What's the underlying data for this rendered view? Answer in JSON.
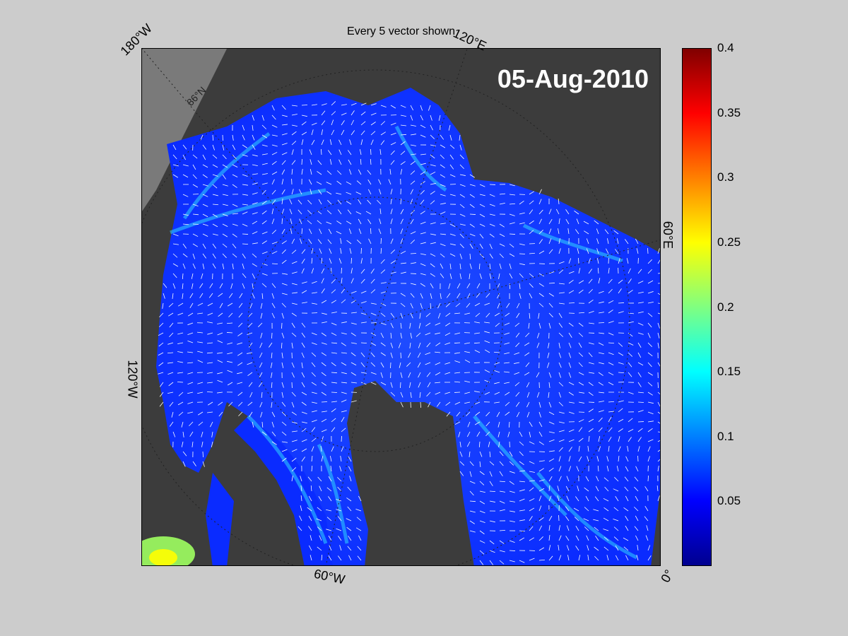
{
  "title": "Every 5 vector shown",
  "date": "05-Aug-2010",
  "geo_labels": {
    "lon_180w": "180°W",
    "lon_120e": "120°E",
    "lon_60e": "60°E",
    "lon_120w": "120°W",
    "lon_60w": "60°W",
    "lon_0": "0°",
    "lat_86n": "86°N"
  },
  "colorbar": {
    "colormap": "jet",
    "min": 0,
    "max": 0.4,
    "ticks": [
      "0.4",
      "0.35",
      "0.3",
      "0.25",
      "0.2",
      "0.15",
      "0.1",
      "0.05"
    ]
  },
  "colors": {
    "background": "#cccccc",
    "land": "#3c3c3c",
    "ice_field": "#1a3cff",
    "vectors": "#ffffff"
  }
}
